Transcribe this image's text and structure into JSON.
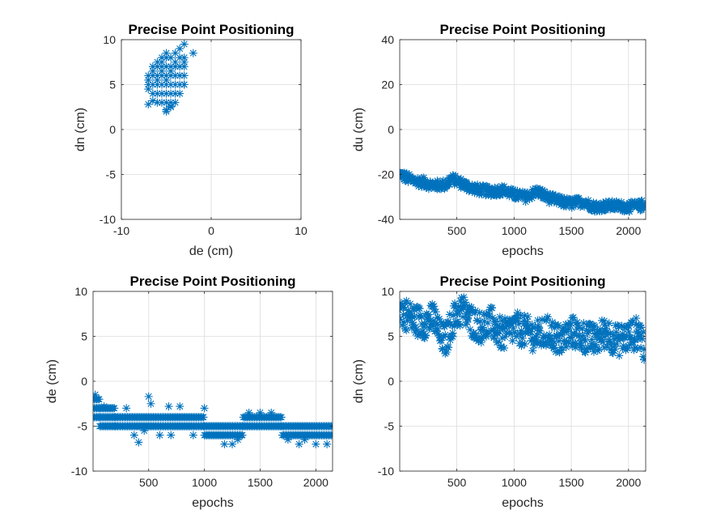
{
  "chart_data": [
    {
      "type": "scatter",
      "title": "Precise Point Positioning",
      "xlabel": "de (cm)",
      "ylabel": "dn (cm)",
      "xlim": [
        -10,
        10
      ],
      "ylim": [
        -10,
        10
      ],
      "xticks": [
        -10,
        0,
        10
      ],
      "yticks": [
        -10,
        -5,
        0,
        5,
        10
      ],
      "grid": true,
      "marker": "asterisk",
      "color": "#0072BD",
      "series": [
        {
          "x": [
            -7,
            -7,
            -7,
            -7,
            -6.5,
            -6.5,
            -6.5,
            -6.5,
            -6.5,
            -6,
            -6,
            -6,
            -6,
            -6,
            -6,
            -6,
            -5.5,
            -5.5,
            -5.5,
            -5.5,
            -5.5,
            -5.5,
            -5.5,
            -5.5,
            -5,
            -5,
            -5,
            -5,
            -5,
            -5,
            -5,
            -5,
            -5,
            -4.5,
            -4.5,
            -4.5,
            -4.5,
            -4.5,
            -4.5,
            -4.5,
            -4.5,
            -4,
            -4,
            -4,
            -4,
            -4,
            -4,
            -4,
            -3.5,
            -3.5,
            -3.5,
            -3.5,
            -3.5,
            -3.5,
            -3,
            -3,
            -3,
            -3,
            -3,
            -3,
            -2,
            -7,
            -6.5,
            -5,
            -4.5,
            -3
          ],
          "y": [
            4.5,
            5,
            5.5,
            6,
            4,
            5,
            6,
            6.5,
            7,
            3,
            4,
            5,
            5.5,
            6,
            7,
            7.5,
            3,
            4,
            5,
            6,
            6.5,
            7,
            7.5,
            8,
            2,
            3,
            4,
            5,
            5.5,
            6,
            7,
            8,
            8.5,
            2.5,
            3,
            4,
            5,
            6,
            6.5,
            7,
            8,
            3,
            4,
            5,
            6,
            7,
            7.5,
            8.5,
            4,
            5,
            6,
            7,
            8,
            9,
            5,
            6,
            7,
            7.5,
            8,
            9.5,
            8.5,
            2.8,
            3.2,
            2.2,
            2.6,
            5
          ]
        }
      ]
    },
    {
      "type": "scatter",
      "title": "Precise Point Positioning",
      "xlabel": "epochs",
      "ylabel": "du (cm)",
      "xlim": [
        1,
        2150
      ],
      "ylim": [
        -40,
        40
      ],
      "xticks": [
        500,
        1000,
        1500,
        2000
      ],
      "yticks": [
        -40,
        -20,
        0,
        20,
        40
      ],
      "grid": true,
      "marker": "asterisk",
      "color": "#0072BD",
      "trend": {
        "x": [
          1,
          100,
          200,
          300,
          400,
          450,
          500,
          600,
          700,
          800,
          900,
          1000,
          1100,
          1200,
          1300,
          1400,
          1500,
          1600,
          1700,
          1800,
          1900,
          2000,
          2100,
          2140
        ],
        "y": [
          -20,
          -22.5,
          -23.5,
          -25,
          -24.5,
          -22,
          -23,
          -25.5,
          -27,
          -27.5,
          -27,
          -29,
          -30,
          -27.5,
          -30.5,
          -32,
          -33,
          -32,
          -34.5,
          -34,
          -34,
          -34.5,
          -34,
          -33
        ],
        "spread": 2.2
      }
    },
    {
      "type": "scatter",
      "title": "Precise Point Positioning",
      "xlabel": "epochs",
      "ylabel": "de (cm)",
      "xlim": [
        1,
        2150
      ],
      "ylim": [
        -10,
        10
      ],
      "xticks": [
        500,
        1000,
        1500,
        2000
      ],
      "yticks": [
        -10,
        -5,
        0,
        5,
        10
      ],
      "grid": true,
      "marker": "asterisk",
      "color": "#0072BD",
      "segments": [
        {
          "x0": 1,
          "x1": 60,
          "levels": [
            -2,
            -3,
            -4
          ]
        },
        {
          "x0": 60,
          "x1": 200,
          "levels": [
            -3,
            -4,
            -5
          ]
        },
        {
          "x0": 200,
          "x1": 1000,
          "levels": [
            -4,
            -5
          ]
        },
        {
          "x0": 1000,
          "x1": 1350,
          "levels": [
            -5,
            -6
          ]
        },
        {
          "x0": 1350,
          "x1": 1700,
          "levels": [
            -4,
            -5
          ]
        },
        {
          "x0": 1700,
          "x1": 2140,
          "levels": [
            -5,
            -6
          ]
        }
      ],
      "outliers": {
        "x": [
          20,
          100,
          300,
          370,
          410,
          460,
          500,
          520,
          600,
          680,
          700,
          780,
          900,
          1000,
          1180,
          1250,
          1300,
          1400,
          1500,
          1600,
          1750,
          1850,
          1900,
          2000,
          2100
        ],
        "y": [
          -1.5,
          -2.8,
          -3,
          -6,
          -6.8,
          -5.5,
          -1.7,
          -2.5,
          -6,
          -2.8,
          -6,
          -2.8,
          -6,
          -3,
          -7,
          -7,
          -6.5,
          -3.5,
          -3.5,
          -3.5,
          -6.5,
          -7,
          -6.5,
          -7,
          -7
        ]
      }
    },
    {
      "type": "scatter",
      "title": "Precise Point Positioning",
      "xlabel": "epochs",
      "ylabel": "dn (cm)",
      "xlim": [
        1,
        2150
      ],
      "ylim": [
        -10,
        10
      ],
      "xticks": [
        500,
        1000,
        1500,
        2000
      ],
      "yticks": [
        -10,
        -5,
        0,
        5,
        10
      ],
      "grid": true,
      "marker": "asterisk",
      "color": "#0072BD",
      "trend": {
        "x": [
          1,
          100,
          200,
          300,
          350,
          400,
          450,
          500,
          550,
          600,
          700,
          800,
          900,
          1000,
          1100,
          1200,
          1300,
          1400,
          1500,
          1600,
          1700,
          1800,
          1900,
          2000,
          2100,
          2140
        ],
        "y": [
          8,
          7,
          6.5,
          7,
          5,
          4.5,
          6.5,
          7.5,
          8,
          7,
          6,
          6.5,
          5,
          6,
          5.5,
          5,
          5.5,
          4.5,
          5.5,
          5,
          4.5,
          5.5,
          4.5,
          5,
          5.5,
          3.5
        ],
        "spread": 1.8
      }
    }
  ]
}
